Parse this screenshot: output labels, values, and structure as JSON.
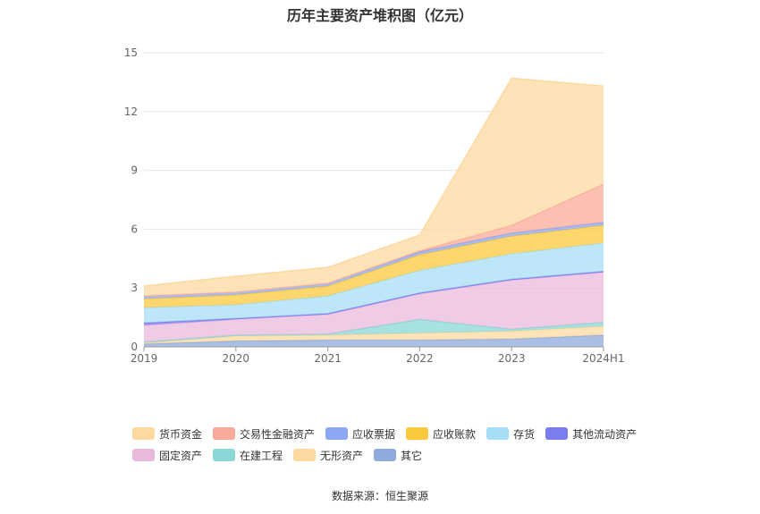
{
  "source_text": "数据来源：恒生聚源",
  "chart_data": {
    "type": "area",
    "stacked": true,
    "title": "历年主要资产堆积图（亿元）",
    "categories": [
      "2019",
      "2020",
      "2021",
      "2022",
      "2023",
      "2024H1"
    ],
    "ylim": [
      0,
      15
    ],
    "yticks": [
      "0",
      "3",
      "6",
      "9",
      "12",
      "15"
    ],
    "grid": true,
    "legend_position": "bottom",
    "series": [
      {
        "name": "其它",
        "color": "#8faadc",
        "values": [
          0.15,
          0.3,
          0.35,
          0.35,
          0.4,
          0.6
        ]
      },
      {
        "name": "无形资产",
        "color": "#fdd9a0",
        "values": [
          0.05,
          0.25,
          0.25,
          0.35,
          0.4,
          0.45
        ]
      },
      {
        "name": "在建工程",
        "color": "#8ad8d6",
        "values": [
          0.05,
          0.05,
          0.05,
          0.7,
          0.1,
          0.2
        ]
      },
      {
        "name": "固定资产",
        "color": "#e9b9dc",
        "values": [
          0.85,
          0.8,
          1.0,
          1.3,
          2.5,
          2.55
        ]
      },
      {
        "name": "其他流动资产",
        "color": "#7b7cf0",
        "values": [
          0.12,
          0.05,
          0.05,
          0.05,
          0.05,
          0.05
        ]
      },
      {
        "name": "存货",
        "color": "#a8ddf7",
        "values": [
          0.78,
          0.7,
          0.9,
          1.15,
          1.3,
          1.45
        ]
      },
      {
        "name": "应收账款",
        "color": "#fcc93e",
        "values": [
          0.45,
          0.5,
          0.5,
          0.8,
          0.9,
          0.9
        ]
      },
      {
        "name": "应收票据",
        "color": "#8ca8f5",
        "values": [
          0.15,
          0.15,
          0.15,
          0.15,
          0.15,
          0.15
        ]
      },
      {
        "name": "交易性金融资产",
        "color": "#f9a99a",
        "values": [
          0.0,
          0.0,
          0.0,
          0.05,
          0.4,
          1.95
        ]
      },
      {
        "name": "货币资金",
        "color": "#fdd9a0",
        "values": [
          0.5,
          0.8,
          0.8,
          0.8,
          7.5,
          5.0
        ]
      }
    ]
  },
  "legend": {
    "row1": [
      {
        "label": "货币资金",
        "color": "#fdd9a0"
      },
      {
        "label": "交易性金融资产",
        "color": "#f9a99a"
      },
      {
        "label": "应收票据",
        "color": "#8ca8f5"
      },
      {
        "label": "应收账款",
        "color": "#fcc93e"
      },
      {
        "label": "存货",
        "color": "#a8ddf7"
      },
      {
        "label": "其他流动资产",
        "color": "#7b7cf0"
      }
    ],
    "row2": [
      {
        "label": "固定资产",
        "color": "#e9b9dc"
      },
      {
        "label": "在建工程",
        "color": "#8ad8d6"
      },
      {
        "label": "无形资产",
        "color": "#fdd9a0"
      },
      {
        "label": "其它",
        "color": "#8faadc"
      }
    ]
  }
}
